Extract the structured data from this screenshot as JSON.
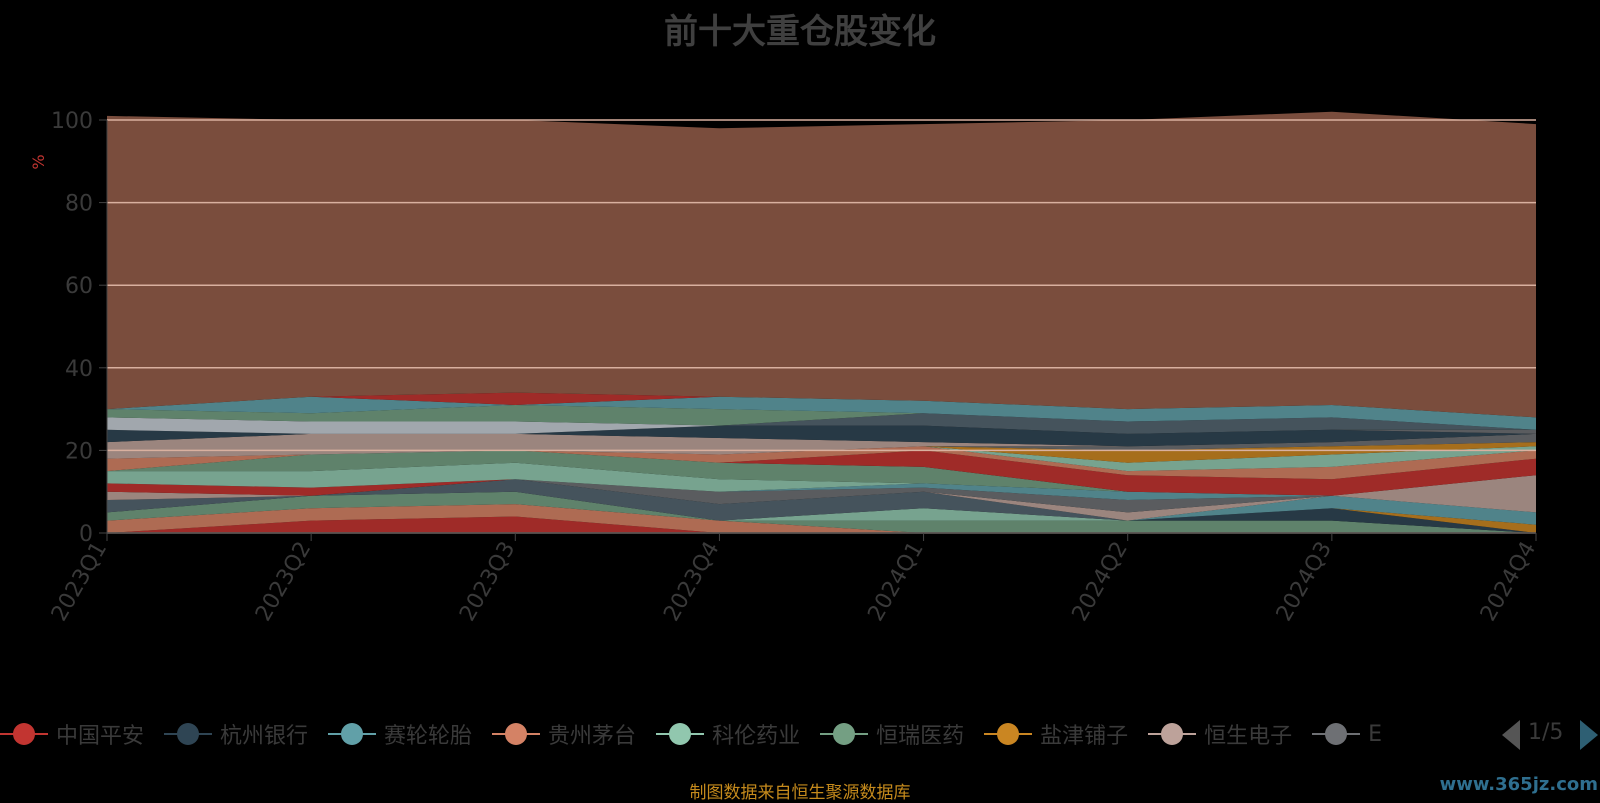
{
  "title": "前十大重仓股变化",
  "source_note": "制图数据来自恒生聚源数据库",
  "watermark": "www.365jz.com",
  "legend_page": "1/5",
  "colors": {
    "background": "#000000",
    "plot_fill": "#955e4a",
    "gridline": "#d9b09f",
    "title": "#3f3f3f",
    "source": "#c58a1c",
    "ylabel": "#c23531"
  },
  "legend_items": [
    {
      "name": "中国平安",
      "color": "#c23531"
    },
    {
      "name": "杭州银行",
      "color": "#2f4554"
    },
    {
      "name": "赛轮轮胎",
      "color": "#61a0a8"
    },
    {
      "name": "贵州茅台",
      "color": "#d48265"
    },
    {
      "name": "科伦药业",
      "color": "#91c7ae"
    },
    {
      "name": "恒瑞医药",
      "color": "#749f83"
    },
    {
      "name": "盐津铺子",
      "color": "#ca8622"
    },
    {
      "name": "恒生电子",
      "color": "#bda29a"
    },
    {
      "name": "E",
      "color": "#6e7074"
    }
  ],
  "chart_data": {
    "type": "area",
    "title": "前十大重仓股变化",
    "ylabel": "%",
    "xlabel": "",
    "categories": [
      "2023Q1",
      "2023Q2",
      "2023Q3",
      "2023Q4",
      "2024Q1",
      "2024Q2",
      "2024Q3",
      "2024Q4"
    ],
    "ylim": [
      0,
      100
    ],
    "yticks": [
      0,
      20,
      40,
      60,
      80,
      100
    ],
    "grid": true,
    "legend_position": "bottom",
    "series": [
      {
        "color": "#c23531",
        "values": [
          0,
          3,
          4,
          0,
          0,
          0,
          0,
          0
        ]
      },
      {
        "color": "#d48265",
        "values": [
          3,
          3,
          3,
          3,
          0,
          0,
          0,
          0
        ]
      },
      {
        "color": "#749f83",
        "values": [
          2,
          3,
          3,
          0,
          3,
          3,
          3,
          0
        ]
      },
      {
        "color": "#91c7ae",
        "values": [
          0,
          0,
          0,
          0,
          3,
          0,
          0,
          0
        ]
      },
      {
        "color": "#2f4554",
        "values": [
          0,
          0,
          0,
          0,
          0,
          0,
          3,
          0
        ]
      },
      {
        "color": "#ca8622",
        "values": [
          0,
          0,
          0,
          0,
          0,
          0,
          0,
          2
        ]
      },
      {
        "color": "#61a0a8",
        "values": [
          0,
          0,
          0,
          0,
          0,
          0,
          3,
          3
        ]
      },
      {
        "color": "#546570",
        "values": [
          3,
          0,
          3,
          4,
          4,
          0,
          0,
          0
        ]
      },
      {
        "color": "#bda29a",
        "values": [
          2,
          0,
          0,
          0,
          0,
          2,
          0,
          9
        ]
      },
      {
        "color": "#6e7074",
        "values": [
          0,
          0,
          0,
          3,
          1,
          3,
          0,
          0
        ]
      },
      {
        "color": "#c4ccd3",
        "values": [
          0,
          0,
          0,
          0,
          0,
          0,
          0,
          0
        ]
      },
      {
        "color": "#c23531",
        "values": [
          2,
          2,
          0,
          0,
          0,
          0,
          0,
          0
        ]
      },
      {
        "color": "#61a0a8",
        "values": [
          0,
          0,
          0,
          0,
          1,
          2,
          0,
          0
        ]
      },
      {
        "color": "#91c7ae",
        "values": [
          3,
          4,
          4,
          3,
          0,
          0,
          0,
          0
        ]
      },
      {
        "color": "#749f83",
        "values": [
          0,
          4,
          3,
          4,
          4,
          0,
          0,
          0
        ]
      },
      {
        "color": "#c23531",
        "values": [
          0,
          0,
          0,
          0,
          4,
          4,
          4,
          4
        ]
      },
      {
        "color": "#d48265",
        "values": [
          3,
          0,
          0,
          0,
          0,
          0,
          0,
          0
        ]
      },
      {
        "color": "#d48265",
        "values": [
          0,
          0,
          0,
          2,
          1,
          1,
          3,
          2
        ]
      },
      {
        "color": "#91c7ae",
        "values": [
          0,
          0,
          0,
          0,
          0,
          2,
          3,
          1
        ]
      },
      {
        "color": "#ca8622",
        "values": [
          0,
          0,
          0,
          0,
          0,
          3,
          2,
          1
        ]
      },
      {
        "color": "#6e7074",
        "values": [
          0,
          0,
          0,
          0,
          0,
          1,
          1,
          2
        ]
      },
      {
        "color": "#bda29a",
        "values": [
          4,
          5,
          4,
          4,
          1,
          0,
          0,
          0
        ]
      },
      {
        "color": "#2f4554",
        "values": [
          3,
          0,
          0,
          3,
          4,
          3,
          3,
          0
        ]
      },
      {
        "color": "#6e7074",
        "values": [
          0,
          0,
          0,
          0,
          0,
          0,
          0,
          1
        ]
      },
      {
        "color": "#546570",
        "values": [
          0,
          0,
          0,
          0,
          3,
          3,
          3,
          0
        ]
      },
      {
        "color": "#c4ccd3",
        "values": [
          3,
          3,
          3,
          0,
          0,
          0,
          0,
          0
        ]
      },
      {
        "color": "#749f83",
        "values": [
          2,
          2,
          4,
          4,
          0,
          0,
          0,
          0
        ]
      },
      {
        "color": "#61a0a8",
        "values": [
          0,
          4,
          0,
          3,
          3,
          3,
          3,
          3
        ]
      },
      {
        "color": "#c23531",
        "values": [
          0,
          0,
          3,
          0,
          0,
          0,
          0,
          0
        ]
      },
      {
        "color": "#955e4a",
        "values": [
          71,
          67,
          66,
          65,
          67,
          70,
          71,
          71
        ]
      }
    ]
  }
}
